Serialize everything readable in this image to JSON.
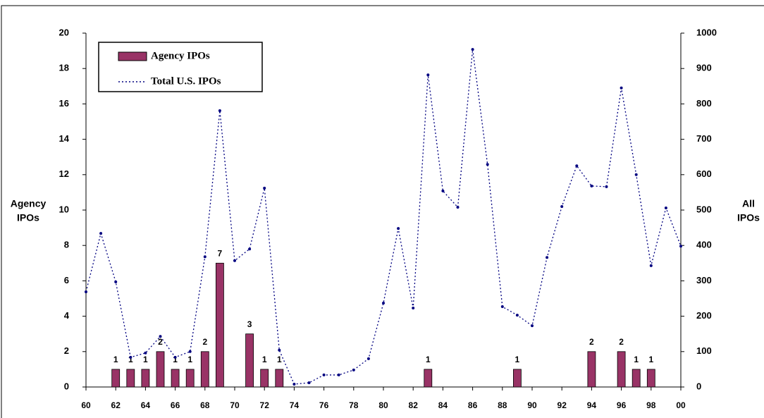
{
  "chart_data": {
    "type": "bar",
    "y_label": [
      "Agency",
      "IPOs"
    ],
    "y2_label": [
      "All",
      "IPOs"
    ],
    "xlim": [
      60,
      100
    ],
    "xticks": [
      60,
      62,
      64,
      66,
      68,
      70,
      72,
      74,
      76,
      78,
      80,
      82,
      84,
      86,
      88,
      90,
      92,
      94,
      96,
      98,
      {
        "value": 100,
        "label": "00"
      }
    ],
    "ylim": [
      0,
      20
    ],
    "yticks": [
      0,
      2,
      4,
      6,
      8,
      10,
      12,
      14,
      16,
      18,
      20
    ],
    "y2lim": [
      0,
      1000
    ],
    "y2ticks": [
      0,
      100,
      200,
      300,
      400,
      500,
      600,
      700,
      800,
      900,
      1000
    ],
    "legend": "upper left",
    "series": [
      {
        "name": "Agency IPOs",
        "type": "bar",
        "color": "#993366",
        "x": [
          62,
          63,
          64,
          65,
          66,
          67,
          68,
          69,
          71,
          72,
          73,
          83,
          89,
          94,
          96,
          97,
          98
        ],
        "values": [
          1,
          1,
          1,
          2,
          1,
          1,
          2,
          7,
          3,
          1,
          1,
          1,
          1,
          2,
          2,
          1,
          1
        ]
      },
      {
        "name": "Total U.S. IPOs",
        "type": "line",
        "axis": "y2",
        "color": "#000080",
        "x": [
          60,
          61,
          62,
          63,
          64,
          65,
          66,
          67,
          68,
          69,
          70,
          71,
          72,
          73,
          74,
          75,
          76,
          77,
          78,
          79,
          80,
          81,
          82,
          83,
          84,
          85,
          86,
          87,
          88,
          89,
          90,
          91,
          92,
          93,
          94,
          95,
          96,
          97,
          98,
          99,
          100
        ],
        "values": [
          269,
          434,
          297,
          84,
          96,
          143,
          84,
          100,
          368,
          781,
          357,
          390,
          562,
          104,
          8,
          12,
          34,
          34,
          48,
          80,
          237,
          448,
          223,
          882,
          554,
          508,
          954,
          629,
          227,
          203,
          173,
          366,
          510,
          625,
          568,
          566,
          845,
          600,
          343,
          506,
          398
        ]
      }
    ]
  }
}
